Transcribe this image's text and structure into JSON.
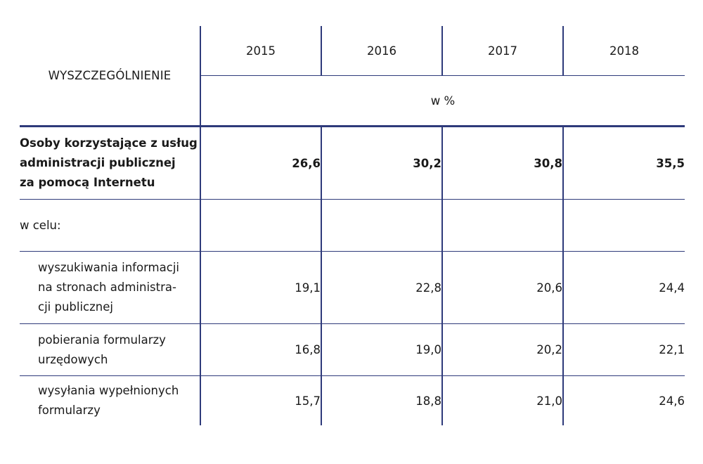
{
  "table": {
    "header_label": "WYSZCZEGÓLNIENIE",
    "years": [
      "2015",
      "2016",
      "2017",
      "2018"
    ],
    "unit": "w %",
    "rows": [
      {
        "lines": [
          "Osoby korzystające z usług",
          "administracji publicznej",
          "za pomocą Internetu"
        ],
        "values": [
          "26,6",
          "30,2",
          "30,8",
          "35,5"
        ]
      },
      {
        "lines": [
          "w celu:"
        ],
        "values": [
          "",
          "",
          "",
          ""
        ]
      },
      {
        "lines": [
          "wyszukiwania informacji",
          "na stronach administra-",
          "cji publicznej"
        ],
        "values": [
          "19,1",
          "22,8",
          "20,6",
          "24,4"
        ]
      },
      {
        "lines": [
          "pobierania formularzy",
          "urzędowych"
        ],
        "values": [
          "16,8",
          "19,0",
          "20,2",
          "22,1"
        ]
      },
      {
        "lines": [
          "wysyłania wypełnionych",
          "formularzy"
        ],
        "values": [
          "15,7",
          "18,8",
          "21,0",
          "24,6"
        ]
      }
    ]
  }
}
